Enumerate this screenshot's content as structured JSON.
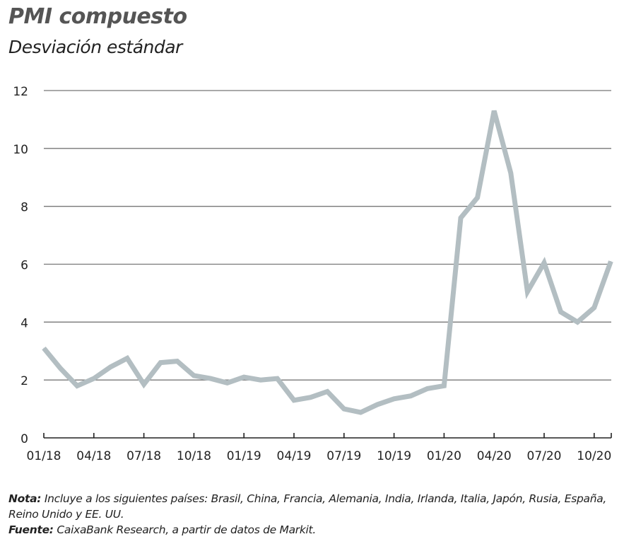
{
  "chart_data": {
    "type": "line",
    "title": "PMI compuesto",
    "subtitle": "Desviación estándar",
    "xlabel": "",
    "ylabel": "",
    "ylim": [
      0,
      12
    ],
    "yticks": [
      0,
      2,
      4,
      6,
      8,
      10,
      12
    ],
    "xtick_labels": [
      "01/18",
      "04/18",
      "07/18",
      "10/18",
      "01/19",
      "04/19",
      "07/19",
      "10/19",
      "01/20",
      "04/20",
      "07/20",
      "10/20"
    ],
    "grid": true,
    "line_color": "#b3bec2",
    "series": [
      {
        "name": "PMI compuesto",
        "x": [
          "01/18",
          "02/18",
          "03/18",
          "04/18",
          "05/18",
          "06/18",
          "07/18",
          "08/18",
          "09/18",
          "10/18",
          "11/18",
          "12/18",
          "01/19",
          "02/19",
          "03/19",
          "04/19",
          "05/19",
          "06/19",
          "07/19",
          "08/19",
          "09/19",
          "10/19",
          "11/19",
          "12/19",
          "01/20",
          "02/20",
          "03/20",
          "04/20",
          "05/20",
          "06/20",
          "07/20",
          "08/20",
          "09/20",
          "10/20",
          "11/20"
        ],
        "values": [
          3.1,
          2.4,
          1.8,
          2.05,
          2.45,
          2.75,
          1.85,
          2.6,
          2.65,
          2.15,
          2.05,
          1.9,
          2.1,
          2.0,
          2.05,
          1.3,
          1.4,
          1.6,
          1.0,
          0.88,
          1.15,
          1.35,
          1.45,
          1.7,
          1.8,
          7.6,
          8.3,
          11.3,
          9.15,
          5.05,
          6.05,
          4.35,
          4.0,
          4.5,
          6.1
        ]
      }
    ]
  },
  "notes": {
    "nota_label": "Nota:",
    "nota_text": " Incluye a los siguientes países: Brasil, China, Francia, Alemania, India, Irlanda, Italia, Japón, Rusia, España, Reino Unido y EE. UU.",
    "fuente_label": "Fuente:",
    "fuente_text": " CaixaBank Research, a partir de datos de Markit."
  }
}
